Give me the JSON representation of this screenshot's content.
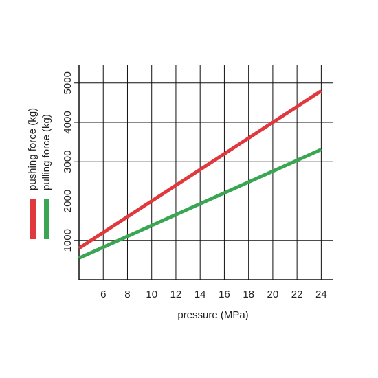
{
  "chart_data": {
    "type": "line",
    "x_label": "pressure (MPa)",
    "x": [
      4,
      24
    ],
    "series": [
      {
        "name": "pushing force (kg)",
        "color": "#e0383c",
        "values": [
          800,
          4800
        ]
      },
      {
        "name": "pulling force (kg)",
        "color": "#3aa552",
        "values": [
          550,
          3310
        ]
      }
    ],
    "xlim": [
      4,
      25
    ],
    "xticks": [
      6,
      8,
      10,
      12,
      14,
      16,
      18,
      20,
      22,
      24
    ],
    "ylim": [
      0,
      5450
    ],
    "yticks": [
      1000,
      2000,
      3000,
      4000,
      5000
    ],
    "grid": true,
    "legend": "left"
  }
}
